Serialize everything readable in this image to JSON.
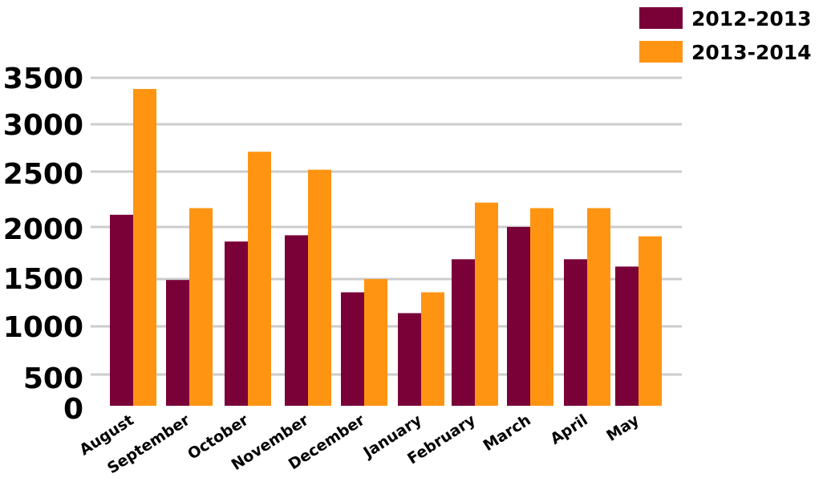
{
  "chart_data": {
    "type": "bar",
    "categories": [
      "August",
      "September",
      "October",
      "November",
      "December",
      "January",
      "February",
      "March",
      "April",
      "May"
    ],
    "series": [
      {
        "name": "2012-2013",
        "color": "#7a0038",
        "values": [
          2110,
          1490,
          1860,
          1920,
          1360,
          1140,
          1690,
          2000,
          1690,
          1620
        ]
      },
      {
        "name": "2013-2014",
        "color": "#ff9412",
        "values": [
          3380,
          2170,
          2710,
          2520,
          1500,
          1360,
          2220,
          2170,
          2170,
          1910
        ]
      }
    ],
    "y_ticks": [
      "0",
      "500",
      "1000",
      "1500",
      "2000",
      "2500",
      "3000",
      "3500"
    ],
    "title": "",
    "xlabel": "",
    "ylabel": "",
    "grid": true,
    "legend": "top-right"
  }
}
